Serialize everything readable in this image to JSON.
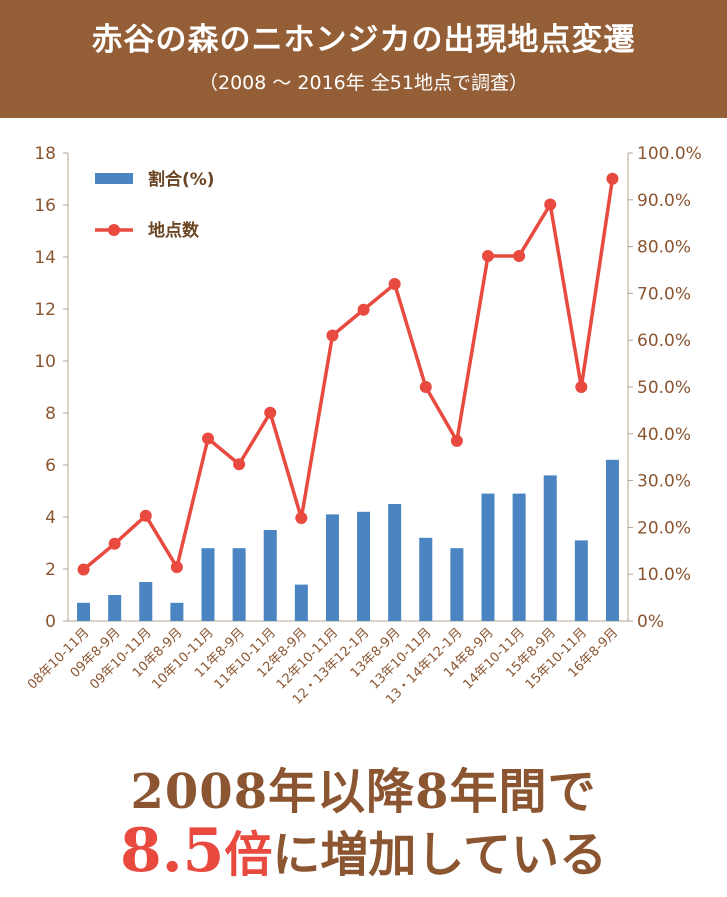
{
  "header": {
    "title": "赤谷の森のニホンジカの出現地点変遷",
    "subtitle": "（2008 〜 2016年 全51地点で調査）"
  },
  "colors": {
    "bar": "#4a84c1",
    "line": "#e84a3f",
    "header_bg": "#945f37",
    "text": "#8a5530"
  },
  "chart_data": {
    "type": "bar+line",
    "categories": [
      "08年10-11月",
      "09年8-9月",
      "09年10-11月",
      "10年8-9月",
      "10年10-11月",
      "11年8-9月",
      "11年10-11月",
      "12年8-9月",
      "12年10-11月",
      "12・13年12-1月",
      "13年8-9月",
      "13年10-11月",
      "13・14年12-1月",
      "14年8-9月",
      "14年10-11月",
      "15年8-9月",
      "15年10-11月",
      "16年8-9月"
    ],
    "series": [
      {
        "name": "割合(%)",
        "type": "bar",
        "axis": "left",
        "values": [
          0.7,
          1.0,
          1.5,
          0.7,
          2.8,
          2.8,
          3.5,
          1.4,
          4.1,
          4.2,
          4.5,
          3.2,
          2.8,
          4.9,
          4.9,
          5.6,
          3.1,
          6.2
        ]
      },
      {
        "name": "地点数",
        "type": "line",
        "axis": "right",
        "values": [
          11,
          16.5,
          22.5,
          11.5,
          39,
          33.5,
          44.5,
          22,
          61,
          66.5,
          72,
          50,
          38.5,
          78,
          78,
          89,
          50,
          94.5
        ]
      }
    ],
    "left_axis": {
      "min": 0,
      "max": 18,
      "ticks": [
        "0",
        "2",
        "4",
        "6",
        "8",
        "10",
        "12",
        "14",
        "16",
        "18"
      ]
    },
    "right_axis": {
      "min": 0,
      "max": 100,
      "ticks": [
        "0%",
        "10.0%",
        "20.0%",
        "30.0%",
        "40.0%",
        "50.0%",
        "60.0%",
        "70.0%",
        "80.0%",
        "90.0%",
        "100.0%"
      ]
    },
    "legend": [
      "割合(%)",
      "地点数"
    ],
    "legend_placement": "top-left"
  },
  "footer": {
    "line1": "2008年以降8年間で",
    "line2_num": "8.5",
    "line2_unit": "倍",
    "line2_rest": "に増加している"
  }
}
